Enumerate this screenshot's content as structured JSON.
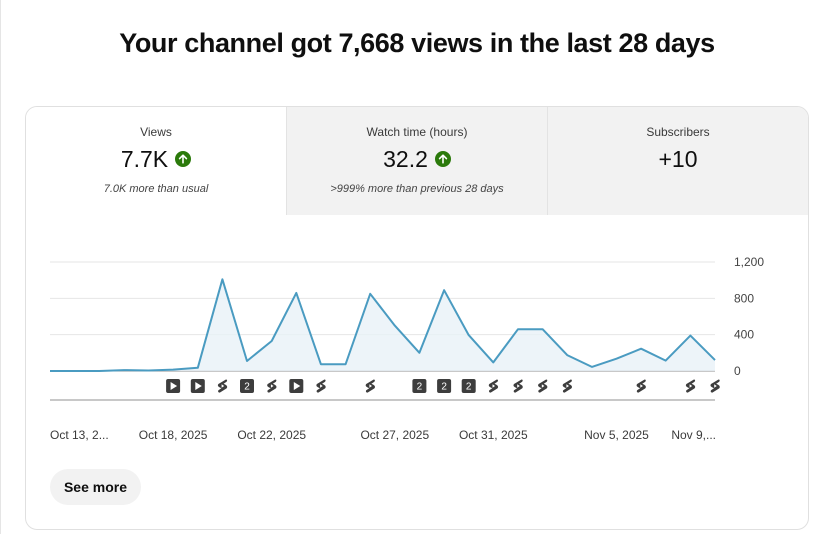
{
  "headline": "Your channel got 7,668 views in the last 28 days",
  "tabs": [
    {
      "label": "Views",
      "value": "7.7K",
      "trend": "up",
      "sub": "7.0K more than usual"
    },
    {
      "label": "Watch time (hours)",
      "value": "32.2",
      "trend": "up",
      "sub": ">999% more than previous 28 days"
    },
    {
      "label": "Subscribers",
      "value": "+10",
      "trend": "none",
      "sub": ""
    }
  ],
  "see_more_label": "See more",
  "colors": {
    "line": "#4a9bc1",
    "fill": "#e8f1f8",
    "trend_up": "#2b7a0b",
    "marker_bg": "#3d3d3d"
  },
  "chart_data": {
    "type": "area",
    "y_ticks": [
      "1,200",
      "800",
      "400",
      "0"
    ],
    "ylim": [
      0,
      1200
    ],
    "x_labels": [
      "Oct 13, 2...",
      "Oct 18, 2025",
      "Oct 22, 2025",
      "Oct 27, 2025",
      "Oct 31, 2025",
      "Nov 5, 2025",
      "Nov 9,..."
    ],
    "x_label_index": [
      0,
      5,
      9,
      14,
      18,
      23,
      27
    ],
    "values": [
      0,
      0,
      0,
      10,
      5,
      15,
      35,
      1010,
      110,
      330,
      860,
      75,
      75,
      850,
      500,
      200,
      890,
      395,
      95,
      460,
      460,
      175,
      45,
      135,
      245,
      115,
      390,
      120
    ],
    "markers": [
      {
        "index": 5,
        "kind": "video"
      },
      {
        "index": 6,
        "kind": "video"
      },
      {
        "index": 7,
        "kind": "shorts"
      },
      {
        "index": 8,
        "kind": "count",
        "label": "2"
      },
      {
        "index": 9,
        "kind": "shorts"
      },
      {
        "index": 10,
        "kind": "video"
      },
      {
        "index": 11,
        "kind": "shorts"
      },
      {
        "index": 13,
        "kind": "shorts"
      },
      {
        "index": 15,
        "kind": "count",
        "label": "2"
      },
      {
        "index": 16,
        "kind": "count",
        "label": "2"
      },
      {
        "index": 17,
        "kind": "count",
        "label": "2"
      },
      {
        "index": 18,
        "kind": "shorts"
      },
      {
        "index": 19,
        "kind": "shorts"
      },
      {
        "index": 20,
        "kind": "shorts"
      },
      {
        "index": 21,
        "kind": "shorts"
      },
      {
        "index": 24,
        "kind": "shorts"
      },
      {
        "index": 26,
        "kind": "shorts"
      },
      {
        "index": 27,
        "kind": "shorts"
      }
    ],
    "grid": true
  }
}
